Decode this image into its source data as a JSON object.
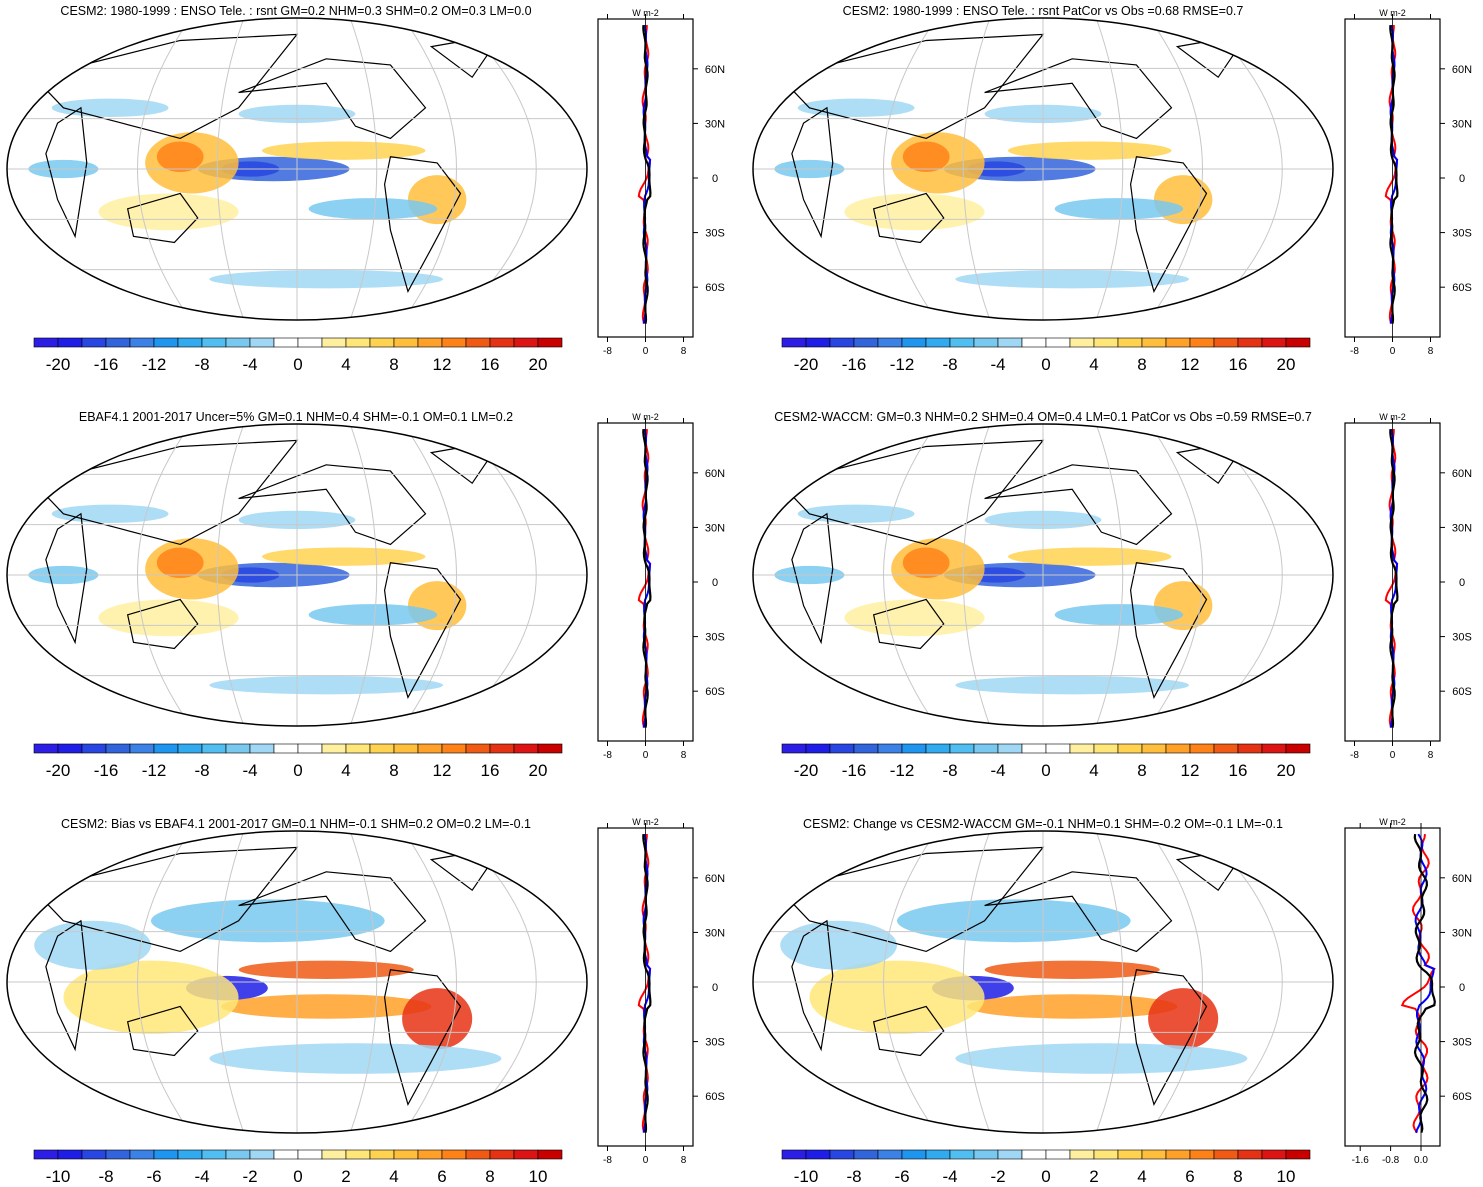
{
  "figure": {
    "description_units": "W m-2",
    "colors": {
      "land_line": "#000000",
      "grid_line": "#c8c8c8",
      "profile_cesm": "#000000",
      "profile_obs": "#0000ff",
      "profile_other": "#ff0000"
    }
  },
  "chart_data": [
    {
      "type": "heatmap",
      "panel": "top-left",
      "title": "CESM2: 1980-1999 : ENSO Tele. : rsnt GM=0.2 NHM=0.3 SHM=0.2 OM=0.3 LM=0.0",
      "projection": "Robinson",
      "field": "rsnt ENSO teleconnection",
      "colorbar": {
        "tick_labels": [
          "-20",
          "-16",
          "-12",
          "-8",
          "-4",
          "0",
          "4",
          "8",
          "12",
          "16",
          "20"
        ],
        "levels": 22
      },
      "profile": {
        "unit_label": "W m-2",
        "x_ticks": [
          "-8",
          "0",
          "8"
        ],
        "y_ticks": [
          "60N",
          "30N",
          "0",
          "30S",
          "60S"
        ],
        "xlim": [
          -10,
          10
        ]
      }
    },
    {
      "type": "heatmap",
      "panel": "top-right",
      "title": "CESM2: 1980-1999 : ENSO Tele. : rsnt PatCor vs Obs =0.68 RMSE=0.7",
      "projection": "Robinson",
      "field": "rsnt ENSO teleconnection",
      "colorbar": {
        "tick_labels": [
          "-20",
          "-16",
          "-12",
          "-8",
          "-4",
          "0",
          "4",
          "8",
          "12",
          "16",
          "20"
        ],
        "levels": 22
      },
      "profile": {
        "unit_label": "W m-2",
        "x_ticks": [
          "-8",
          "0",
          "8"
        ],
        "y_ticks": [
          "60N",
          "30N",
          "0",
          "30S",
          "60S"
        ],
        "xlim": [
          -10,
          10
        ]
      }
    },
    {
      "type": "heatmap",
      "panel": "middle-left",
      "title": "EBAF4.1 2001-2017 Uncer=5% GM=0.1 NHM=0.4 SHM=-0.1 OM=0.1 LM=0.2",
      "projection": "Robinson",
      "field": "rsnt ENSO teleconnection",
      "colorbar": {
        "tick_labels": [
          "-20",
          "-16",
          "-12",
          "-8",
          "-4",
          "0",
          "4",
          "8",
          "12",
          "16",
          "20"
        ],
        "levels": 22
      },
      "profile": {
        "unit_label": "W m-2",
        "x_ticks": [
          "-8",
          "0",
          "8"
        ],
        "y_ticks": [
          "60N",
          "30N",
          "0",
          "30S",
          "60S"
        ],
        "xlim": [
          -10,
          10
        ]
      }
    },
    {
      "type": "heatmap",
      "panel": "middle-right",
      "title": "CESM2-WACCM: GM=0.3 NHM=0.2 SHM=0.4 OM=0.4 LM=0.1 PatCor vs Obs =0.59 RMSE=0.7",
      "projection": "Robinson",
      "field": "rsnt ENSO teleconnection",
      "colorbar": {
        "tick_labels": [
          "-20",
          "-16",
          "-12",
          "-8",
          "-4",
          "0",
          "4",
          "8",
          "12",
          "16",
          "20"
        ],
        "levels": 22
      },
      "profile": {
        "unit_label": "W m-2",
        "x_ticks": [
          "-8",
          "0",
          "8"
        ],
        "y_ticks": [
          "60N",
          "30N",
          "0",
          "30S",
          "60S"
        ],
        "xlim": [
          -10,
          10
        ]
      }
    },
    {
      "type": "heatmap",
      "panel": "bottom-left",
      "title": "CESM2: Bias vs EBAF4.1 2001-2017 GM=0.1 NHM=-0.1 SHM=0.2 OM=0.2 LM=-0.1",
      "projection": "Robinson",
      "field": "rsnt bias",
      "colorbar": {
        "tick_labels": [
          "-10",
          "-8",
          "-6",
          "-4",
          "-2",
          "0",
          "2",
          "4",
          "6",
          "8",
          "10"
        ],
        "levels": 22
      },
      "profile": {
        "unit_label": "W m-2",
        "x_ticks": [
          "-8",
          "0",
          "8"
        ],
        "y_ticks": [
          "60N",
          "30N",
          "0",
          "30S",
          "60S"
        ],
        "xlim": [
          -10,
          10
        ]
      }
    },
    {
      "type": "heatmap",
      "panel": "bottom-right",
      "title": "CESM2: Change vs CESM2-WACCM GM=-0.1 NHM=0.1 SHM=-0.2 OM=-0.1 LM=-0.1",
      "projection": "Robinson",
      "field": "rsnt change",
      "colorbar": {
        "tick_labels": [
          "-10",
          "-8",
          "-6",
          "-4",
          "-2",
          "0",
          "2",
          "4",
          "6",
          "8",
          "10"
        ],
        "levels": 22
      },
      "profile": {
        "unit_label": "W m-2",
        "x_ticks": [
          "-1.6",
          "-0.8",
          "0.0"
        ],
        "y_ticks": [
          "60N",
          "30N",
          "0",
          "30S",
          "60S"
        ],
        "xlim": [
          -2.0,
          0.5
        ]
      }
    }
  ]
}
